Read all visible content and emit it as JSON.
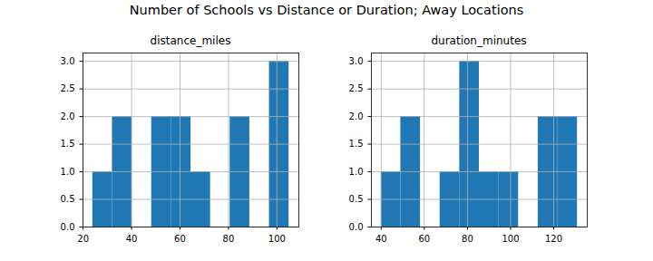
{
  "title": "Number of Schools vs Distance or Duration; Away Locations",
  "chart_data": [
    {
      "type": "histogram",
      "title": "distance_miles",
      "color": "#1f77b4",
      "grid": true,
      "bins": [
        24,
        32.1,
        40.2,
        48.3,
        56.4,
        64.5,
        72.6,
        80.7,
        88.8,
        96.9,
        105
      ],
      "counts": [
        1,
        2,
        0,
        2,
        2,
        1,
        0,
        2,
        0,
        3
      ],
      "xlim": [
        19.95,
        109.05
      ],
      "xticks": [
        20,
        40,
        60,
        80,
        100
      ],
      "ylim": [
        0,
        3.15
      ],
      "yticks": [
        {
          "value": 0,
          "label": "0.0"
        },
        {
          "value": 0.5,
          "label": "0.5"
        },
        {
          "value": 1,
          "label": "1.0"
        },
        {
          "value": 1.5,
          "label": "1.5"
        },
        {
          "value": 2,
          "label": "2.0"
        },
        {
          "value": 2.5,
          "label": "2.5"
        },
        {
          "value": 3,
          "label": "3.0"
        }
      ]
    },
    {
      "type": "histogram",
      "title": "duration_minutes",
      "color": "#1f77b4",
      "grid": true,
      "bins": [
        40,
        49.1,
        58.2,
        67.3,
        76.4,
        85.5,
        94.6,
        103.7,
        112.8,
        121.9,
        131
      ],
      "counts": [
        1,
        2,
        0,
        1,
        3,
        1,
        1,
        0,
        2,
        2
      ],
      "xlim": [
        35.45,
        135.55
      ],
      "xticks": [
        40,
        60,
        80,
        100,
        120
      ],
      "ylim": [
        0,
        3.15
      ],
      "yticks": [
        {
          "value": 0,
          "label": "0.0"
        },
        {
          "value": 0.5,
          "label": "0.5"
        },
        {
          "value": 1,
          "label": "1.0"
        },
        {
          "value": 1.5,
          "label": "1.5"
        },
        {
          "value": 2,
          "label": "2.0"
        },
        {
          "value": 2.5,
          "label": "2.5"
        },
        {
          "value": 3,
          "label": "3.0"
        }
      ]
    }
  ]
}
